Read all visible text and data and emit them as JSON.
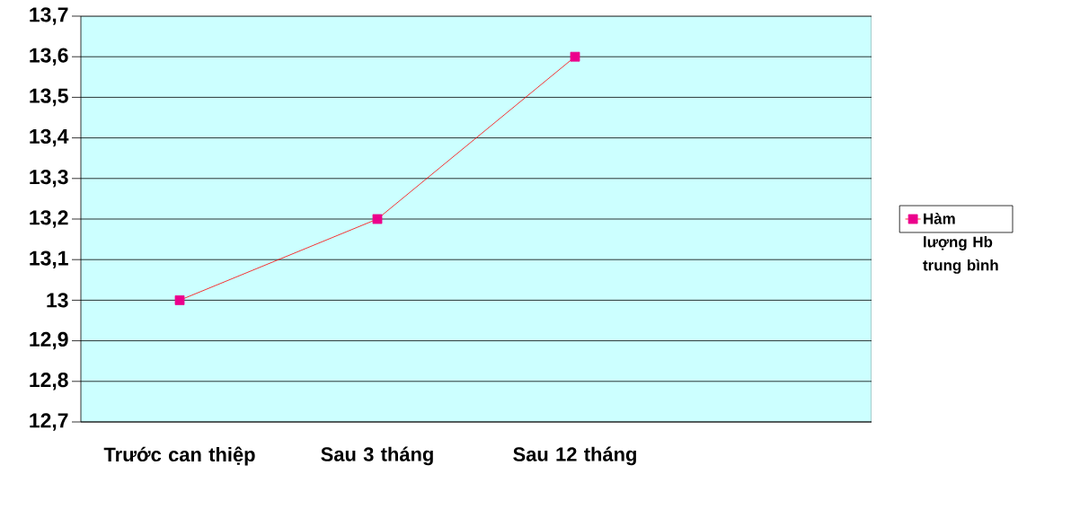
{
  "chart_data": {
    "type": "line",
    "categories": [
      "Trước can thiệp",
      "Sau 3 tháng",
      "Sau 12 tháng",
      null
    ],
    "series": [
      {
        "name": "Hàm lượng Hb trung bình",
        "color": "#ff0000",
        "values": [
          13,
          13.2,
          13.6,
          null
        ]
      }
    ],
    "ylim": [
      12.7,
      13.7
    ],
    "yticks": [
      {
        "value": 12.7,
        "label": "12,7"
      },
      {
        "value": 12.8,
        "label": "12,8"
      },
      {
        "value": 12.9,
        "label": "12,9"
      },
      13,
      {
        "value": 13.1,
        "label": "13,1"
      },
      {
        "value": 13.2,
        "label": "13,2"
      },
      {
        "value": 13.3,
        "label": "13,3"
      },
      {
        "value": 13.4,
        "label": "13,4"
      },
      {
        "value": 13.5,
        "label": "13,5"
      },
      {
        "value": 13.6,
        "label": "13,6"
      },
      {
        "value": 13.7,
        "label": "13,7"
      }
    ],
    "grid": "y",
    "legend": "right",
    "marker": "square",
    "line_style": "solid"
  }
}
